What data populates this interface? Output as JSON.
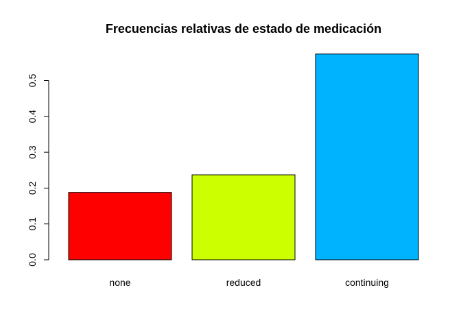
{
  "chart_data": {
    "type": "bar",
    "title": "Frecuencias relativas de estado de medicación",
    "xlabel": "",
    "ylabel": "",
    "categories": [
      "none",
      "reduced",
      "continuing"
    ],
    "values": [
      0.188,
      0.237,
      0.574
    ],
    "colors": [
      "#ff0000",
      "#ccff00",
      "#00b3ff"
    ],
    "ylim": [
      0,
      0.6
    ],
    "y_ticks": [
      0.0,
      0.1,
      0.2,
      0.3,
      0.4,
      0.5
    ],
    "y_tick_labels": [
      "0.0",
      "0.1",
      "0.2",
      "0.3",
      "0.4",
      "0.5"
    ],
    "grid": false,
    "legend": "none"
  }
}
